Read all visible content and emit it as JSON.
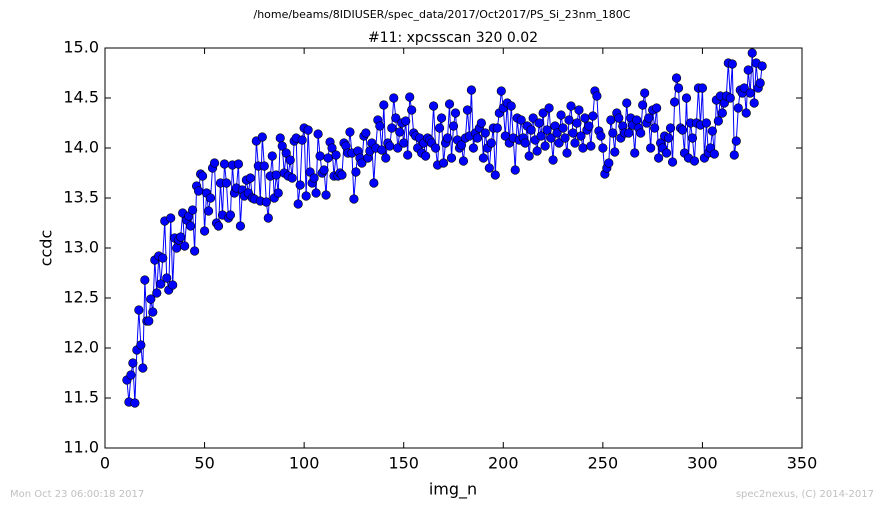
{
  "chart_data": {
    "type": "line",
    "suptitle": "/home/beams/8IDIUSER/spec_data/2017/Oct2017/PS_Si_23nm_180C",
    "title": "#11: xpcsscan 320 0.02",
    "xlabel": "img_n",
    "ylabel": "ccdc",
    "footer_left": "Mon Oct 23 06:00:18 2017",
    "footer_right": "spec2nexus, (C) 2014-2017",
    "color": "#0000ff",
    "marker": "circle",
    "xlim": [
      0,
      350
    ],
    "xticks": [
      0,
      50,
      100,
      150,
      200,
      250,
      300,
      350
    ],
    "ylim": [
      11,
      15
    ],
    "yticks": [
      {
        "value": 11,
        "label": "11.0"
      },
      11.5,
      {
        "value": 12,
        "label": "12.0"
      },
      12.5,
      {
        "value": 13,
        "label": "13.0"
      },
      13.5,
      {
        "value": 14,
        "label": "14.0"
      },
      14.5,
      {
        "value": 15,
        "label": "15.0"
      }
    ],
    "x": [
      11,
      12,
      13,
      14,
      15,
      16,
      17,
      18,
      19,
      20,
      21,
      22,
      23,
      24,
      25,
      26,
      27,
      28,
      29,
      30,
      31,
      32,
      33,
      34,
      35,
      36,
      37,
      38,
      39,
      40,
      41,
      42,
      43,
      44,
      45,
      46,
      47,
      48,
      49,
      50,
      51,
      52,
      53,
      54,
      55,
      56,
      57,
      58,
      59,
      60,
      61,
      62,
      63,
      64,
      65,
      66,
      67,
      68,
      69,
      70,
      71,
      72,
      73,
      74,
      75,
      76,
      77,
      78,
      79,
      80,
      81,
      82,
      83,
      84,
      85,
      86,
      87,
      88,
      89,
      90,
      91,
      92,
      93,
      94,
      95,
      96,
      97,
      98,
      99,
      100,
      101,
      102,
      103,
      104,
      105,
      106,
      107,
      108,
      109,
      110,
      111,
      112,
      113,
      114,
      115,
      116,
      117,
      118,
      119,
      120,
      121,
      122,
      123,
      124,
      125,
      126,
      127,
      128,
      129,
      130,
      131,
      132,
      133,
      134,
      135,
      136,
      137,
      138,
      139,
      140,
      141,
      142,
      143,
      144,
      145,
      146,
      147,
      148,
      149,
      150,
      151,
      152,
      153,
      154,
      155,
      156,
      157,
      158,
      159,
      160,
      161,
      162,
      163,
      164,
      165,
      166,
      167,
      168,
      169,
      170,
      171,
      172,
      173,
      174,
      175,
      176,
      177,
      178,
      179,
      180,
      181,
      182,
      183,
      184,
      185,
      186,
      187,
      188,
      189,
      190,
      191,
      192,
      193,
      194,
      195,
      196,
      197,
      198,
      199,
      200,
      201,
      202,
      203,
      204,
      205,
      206,
      207,
      208,
      209,
      210,
      211,
      212,
      213,
      214,
      215,
      216,
      217,
      218,
      219,
      220,
      221,
      222,
      223,
      224,
      225,
      226,
      227,
      228,
      229,
      230,
      231,
      232,
      233,
      234,
      235,
      236,
      237,
      238,
      239,
      240,
      241,
      242,
      243,
      244,
      245,
      246,
      247,
      248,
      249,
      250,
      251,
      252,
      253,
      254,
      255,
      256,
      257,
      258,
      259,
      260,
      261,
      262,
      263,
      264,
      265,
      266,
      267,
      268,
      269,
      270,
      271,
      272,
      273,
      274,
      275,
      276,
      277,
      278,
      279,
      280,
      281,
      282,
      283,
      284,
      285,
      286,
      287,
      288,
      289,
      290,
      291,
      292,
      293,
      294,
      295,
      296,
      297,
      298,
      299,
      300,
      301,
      302,
      303,
      304,
      305,
      306,
      307,
      308,
      309,
      310,
      311,
      312,
      313,
      314,
      315,
      316,
      317,
      318,
      319,
      320,
      321,
      322,
      323,
      324,
      325,
      326,
      327,
      328,
      329,
      330
    ],
    "values": [
      11.68,
      11.46,
      11.73,
      11.85,
      11.45,
      11.98,
      12.38,
      12.03,
      11.8,
      12.68,
      12.27,
      12.27,
      12.49,
      12.36,
      12.88,
      12.55,
      12.92,
      12.64,
      12.9,
      13.27,
      12.7,
      12.58,
      13.3,
      12.63,
      13.1,
      13.0,
      13.08,
      13.11,
      13.35,
      13.02,
      13.28,
      13.32,
      13.22,
      13.38,
      12.97,
      13.62,
      13.57,
      13.74,
      13.72,
      13.17,
      13.55,
      13.37,
      13.5,
      13.8,
      13.85,
      13.25,
      13.22,
      13.65,
      13.33,
      13.84,
      13.65,
      13.3,
      13.33,
      13.83,
      13.55,
      13.6,
      13.84,
      13.22,
      13.58,
      13.52,
      13.68,
      13.55,
      13.7,
      13.5,
      13.49,
      14.07,
      13.82,
      13.47,
      14.11,
      13.82,
      13.46,
      13.3,
      13.72,
      13.92,
      13.5,
      13.73,
      13.55,
      14.1,
      14.02,
      13.75,
      13.95,
      13.72,
      13.88,
      13.7,
      14.07,
      14.1,
      13.44,
      13.63,
      14.08,
      14.2,
      13.52,
      14.18,
      13.76,
      13.65,
      13.7,
      13.55,
      14.14,
      13.92,
      13.75,
      13.78,
      13.53,
      13.9,
      14.06,
      14.0,
      13.72,
      13.93,
      13.72,
      13.75,
      13.73,
      14.05,
      14.02,
      13.95,
      14.16,
      13.95,
      13.49,
      13.76,
      13.97,
      13.9,
      13.85,
      14.12,
      14.15,
      13.9,
      13.97,
      14.05,
      13.65,
      14.0,
      14.28,
      14.22,
      13.98,
      14.43,
      13.9,
      14.05,
      14.02,
      14.2,
      14.5,
      14.3,
      14.0,
      14.16,
      14.25,
      14.05,
      14.27,
      13.93,
      14.51,
      14.38,
      14.15,
      14.12,
      14.0,
      14.1,
      13.95,
      14.05,
      13.92,
      14.1,
      14.08,
      14.05,
      14.42,
      14.0,
      13.83,
      14.2,
      14.3,
      13.85,
      14.05,
      14.1,
      14.44,
      13.9,
      14.22,
      14.35,
      14.08,
      14.0,
      14.03,
      13.87,
      14.1,
      14.38,
      14.12,
      14.58,
      14.0,
      14.15,
      14.1,
      14.2,
      14.25,
      13.9,
      14.15,
      14.0,
      13.8,
      14.05,
      14.2,
      13.73,
      14.2,
      14.35,
      14.57,
      14.4,
      14.12,
      14.45,
      14.05,
      14.42,
      14.1,
      13.78,
      14.3,
      14.08,
      14.28,
      14.1,
      14.05,
      14.22,
      13.92,
      14.18,
      14.3,
      14.08,
      13.97,
      14.25,
      14.12,
      14.35,
      14.02,
      14.18,
      14.4,
      14.1,
      13.88,
      14.22,
      14.15,
      14.05,
      14.33,
      14.2,
      14.1,
      13.95,
      14.28,
      14.42,
      14.15,
      14.05,
      14.25,
      14.38,
      14.12,
      14.0,
      14.3,
      14.18,
      14.22,
      14.02,
      14.32,
      14.57,
      14.52,
      14.17,
      14.12,
      14.0,
      13.74,
      13.8,
      13.85,
      14.28,
      14.15,
      13.96,
      14.35,
      14.3,
      14.1,
      14.22,
      14.15,
      14.45,
      14.15,
      14.3,
      14.23,
      13.95,
      14.28,
      14.2,
      14.15,
      14.43,
      14.55,
      14.25,
      14.3,
      14.0,
      14.38,
      14.2,
      14.4,
      13.9,
      14.05,
      14.0,
      14.12,
      13.95,
      14.1,
      14.2,
      13.86,
      14.46,
      14.7,
      14.6,
      14.2,
      14.18,
      13.95,
      14.5,
      13.9,
      14.25,
      14.1,
      13.87,
      14.25,
      14.6,
      14.23,
      14.6,
      13.9,
      14.25,
      13.95,
      14.0,
      14.17,
      13.94,
      14.48,
      14.27,
      14.52,
      14.35,
      14.45,
      14.52,
      14.85,
      14.5,
      14.84,
      13.93,
      14.07,
      14.4,
      14.58,
      14.55,
      14.6,
      14.35,
      14.78,
      14.55,
      14.95,
      14.45,
      14.85,
      14.6,
      14.65,
      14.82
    ]
  }
}
